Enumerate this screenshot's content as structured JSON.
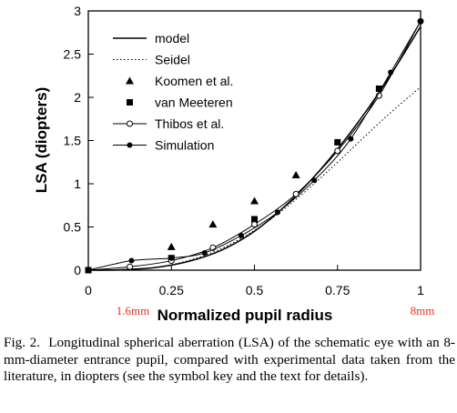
{
  "chart_data": {
    "type": "line",
    "xlabel": "Normalized pupil radius",
    "ylabel": "LSA (diopters)",
    "xlim": [
      0,
      1
    ],
    "ylim": [
      0,
      3
    ],
    "x_ticks": [
      "0",
      "0.25",
      "0.5",
      "0.75",
      "1"
    ],
    "x_tick_values": [
      0,
      0.25,
      0.5,
      0.75,
      1
    ],
    "y_ticks": [
      "0",
      "0.5",
      "1",
      "1.5",
      "2",
      "2.5",
      "3"
    ],
    "y_tick_values": [
      0,
      0.5,
      1,
      1.5,
      2,
      2.5,
      3
    ],
    "grid": false,
    "legend_position": "top-left",
    "x_annotations": [
      {
        "text": "1.6mm",
        "x": 0.2
      },
      {
        "text": "8mm",
        "x": 1.0
      }
    ],
    "series": [
      {
        "name": "model",
        "style": "solid-line",
        "x": [
          0,
          0.1,
          0.2,
          0.3,
          0.4,
          0.5,
          0.6,
          0.7,
          0.8,
          0.9,
          1.0
        ],
        "y": [
          0,
          0.005,
          0.03,
          0.1,
          0.23,
          0.45,
          0.77,
          1.17,
          1.65,
          2.2,
          2.82
        ]
      },
      {
        "name": "Seidel",
        "style": "dotted-line",
        "x": [
          0,
          0.1,
          0.2,
          0.3,
          0.4,
          0.5,
          0.6,
          0.7,
          0.8,
          0.9,
          1.0
        ],
        "y": [
          0,
          0.003,
          0.03,
          0.11,
          0.25,
          0.46,
          0.74,
          1.07,
          1.43,
          1.79,
          2.12
        ]
      },
      {
        "name": "Koomen et al.",
        "style": "triangle-markers",
        "x": [
          0.25,
          0.375,
          0.5,
          0.625
        ],
        "y": [
          0.27,
          0.53,
          0.8,
          1.1
        ]
      },
      {
        "name": "van Meeteren",
        "style": "square-markers",
        "x": [
          0,
          0.25,
          0.5,
          0.75,
          0.875
        ],
        "y": [
          0,
          0.14,
          0.59,
          1.48,
          2.1
        ]
      },
      {
        "name": "Thibos et al.",
        "style": "open-circle-line",
        "x": [
          0,
          0.125,
          0.25,
          0.375,
          0.5,
          0.625,
          0.75,
          0.875,
          1.0
        ],
        "y": [
          0,
          0.04,
          0.11,
          0.26,
          0.53,
          0.88,
          1.38,
          2.02,
          2.88
        ]
      },
      {
        "name": "Simulation",
        "style": "filled-circle-line",
        "x": [
          0,
          0.13,
          0.25,
          0.35,
          0.46,
          0.57,
          0.68,
          0.79,
          0.91,
          1.0
        ],
        "y": [
          0,
          0.11,
          0.14,
          0.2,
          0.4,
          0.67,
          1.04,
          1.52,
          2.29,
          2.88
        ]
      }
    ]
  },
  "caption": {
    "lead": "Fig. 2.",
    "text": "Longitudinal spherical aberration (LSA) of the schematic eye with an 8-mm-diameter entrance pupil, compared with experimental data taken from the literature, in diopters (see the symbol key and the text for details)."
  }
}
